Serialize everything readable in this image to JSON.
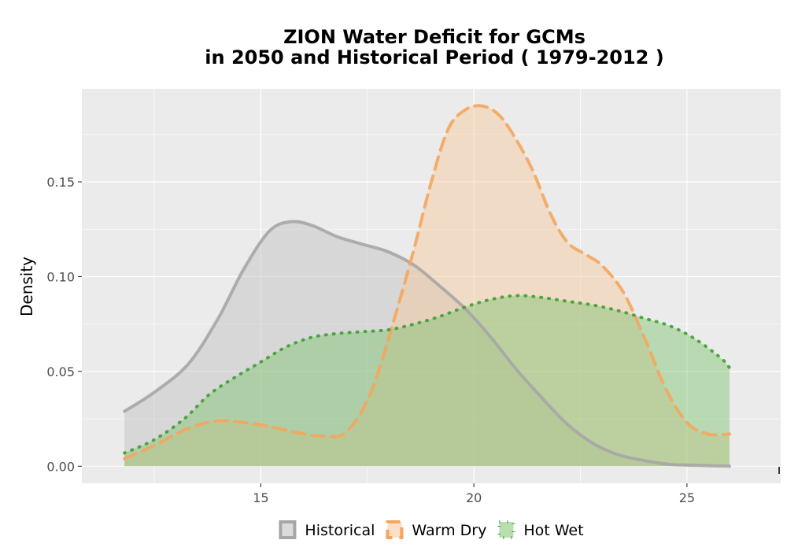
{
  "chart_data": {
    "type": "area",
    "title_lines": [
      "ZION  Water Deficit for GCMs",
      "in 2050 and Historical Period ( 1979-2012 )"
    ],
    "xlabel": "",
    "ylabel": "Density",
    "xlim": [
      10.8,
      27.2
    ],
    "ylim": [
      -0.009,
      0.199
    ],
    "x_ticks": [
      15,
      20,
      25
    ],
    "x_tick_labels": [
      "15",
      "20",
      "25"
    ],
    "y_ticks": [
      0.0,
      0.05,
      0.1,
      0.15
    ],
    "y_tick_labels": [
      "0.00",
      "0.05",
      "0.10",
      "0.15"
    ],
    "grid": true,
    "legend_position": "bottom",
    "series": [
      {
        "name": "Historical",
        "line_style": "solid",
        "color": "#a6a6a6",
        "fill": "#bebebe",
        "fill_opacity": 0.45,
        "x": [
          11.8,
          12.5,
          13.3,
          14.0,
          14.6,
          15.2,
          15.7,
          16.2,
          16.8,
          17.4,
          18.0,
          18.6,
          19.2,
          19.8,
          20.4,
          21.0,
          21.6,
          22.2,
          22.8,
          23.4,
          24.0,
          24.6,
          25.2,
          26.0
        ],
        "values": [
          0.029,
          0.039,
          0.054,
          0.078,
          0.104,
          0.124,
          0.129,
          0.127,
          0.121,
          0.117,
          0.113,
          0.106,
          0.095,
          0.083,
          0.068,
          0.051,
          0.036,
          0.022,
          0.012,
          0.006,
          0.003,
          0.001,
          0.0005,
          0.0
        ]
      },
      {
        "name": "Warm Dry",
        "line_style": "dashed",
        "color": "#f4a65e",
        "fill": "#f6c79b",
        "fill_opacity": 0.45,
        "x": [
          11.8,
          12.5,
          13.3,
          14.0,
          14.6,
          15.2,
          15.8,
          16.4,
          17.0,
          17.6,
          18.2,
          18.6,
          19.0,
          19.4,
          19.8,
          20.2,
          20.6,
          21.0,
          21.4,
          21.8,
          22.2,
          22.6,
          23.0,
          23.5,
          24.0,
          24.5,
          25.0,
          25.5,
          26.0
        ],
        "values": [
          0.004,
          0.011,
          0.02,
          0.024,
          0.023,
          0.021,
          0.018,
          0.016,
          0.018,
          0.04,
          0.083,
          0.115,
          0.15,
          0.178,
          0.188,
          0.19,
          0.185,
          0.172,
          0.155,
          0.133,
          0.118,
          0.112,
          0.106,
          0.092,
          0.068,
          0.041,
          0.023,
          0.017,
          0.017
        ]
      },
      {
        "name": "Hot Wet",
        "line_style": "dotted",
        "color": "#3f9e32",
        "fill": "#7dc36f",
        "fill_opacity": 0.45,
        "x": [
          11.8,
          12.5,
          13.2,
          13.8,
          14.4,
          15.0,
          15.6,
          16.2,
          16.8,
          17.4,
          18.0,
          18.6,
          19.2,
          19.8,
          20.4,
          21.0,
          21.6,
          22.2,
          22.8,
          23.4,
          24.0,
          24.6,
          25.2,
          25.8,
          26.0
        ],
        "values": [
          0.007,
          0.014,
          0.025,
          0.038,
          0.047,
          0.055,
          0.063,
          0.068,
          0.07,
          0.071,
          0.072,
          0.075,
          0.079,
          0.084,
          0.088,
          0.09,
          0.089,
          0.087,
          0.085,
          0.082,
          0.078,
          0.074,
          0.067,
          0.057,
          0.052
        ]
      }
    ]
  }
}
